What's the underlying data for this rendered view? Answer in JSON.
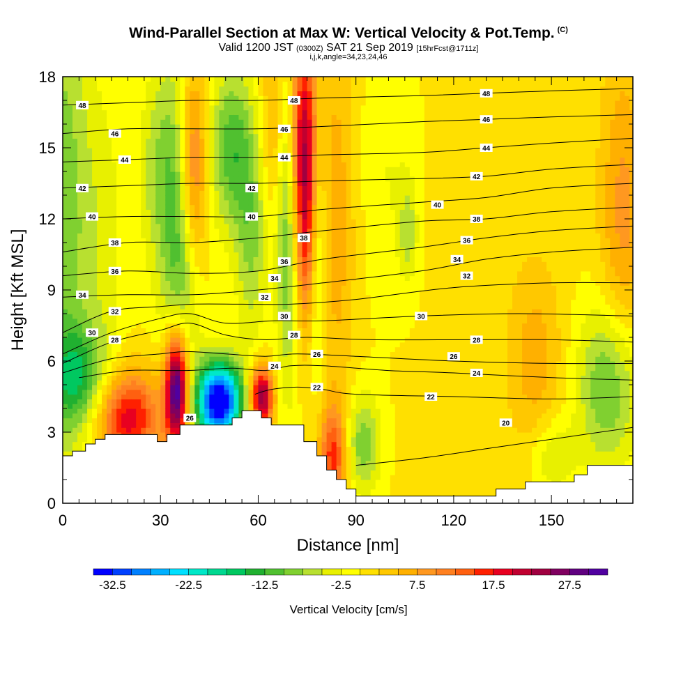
{
  "chart_data": {
    "type": "heatmap",
    "title": "Wind-Parallel Section at Max W: Vertical Velocity & Pot.Temp.",
    "title_mark": "(C)",
    "subtitle_main": "Valid 1200 JST",
    "subtitle_utc": "(0300Z)",
    "subtitle_date": "SAT 21 Sep 2019",
    "subtitle_fcst": "[15hrFcst@1711z]",
    "grid_info": "i,j,k,angle=34,23,24,46",
    "xlabel": "Distance [nm]",
    "ylabel": "Height [Kft MSL]",
    "xlim": [
      0,
      175
    ],
    "ylim": [
      0,
      18
    ],
    "x_ticks": [
      0,
      30,
      60,
      90,
      120,
      150
    ],
    "y_ticks": [
      0,
      3,
      6,
      9,
      12,
      15,
      18
    ],
    "colorbar": {
      "label": "Vertical Velocity [cm/s]",
      "min": -35,
      "max": 32.5,
      "step": 2.5,
      "tick_labels": [
        "-32.5",
        "-22.5",
        "-12.5",
        "-2.5",
        "7.5",
        "17.5",
        "27.5"
      ],
      "colors": [
        "#0000ff",
        "#0040ff",
        "#0080ff",
        "#00b0ff",
        "#00e0ff",
        "#00e8c8",
        "#00d890",
        "#00c860",
        "#20b030",
        "#50c030",
        "#80d030",
        "#b8e030",
        "#e8f000",
        "#ffff00",
        "#ffe000",
        "#ffc800",
        "#ffb000",
        "#ff9820",
        "#ff8020",
        "#ff6010",
        "#ff2000",
        "#e80020",
        "#c00030",
        "#a00040",
        "#800060",
        "#600080",
        "#5000a0"
      ]
    },
    "terrain_kft": [
      [
        0,
        2.0
      ],
      [
        3,
        2.0
      ],
      [
        3,
        2.2
      ],
      [
        7,
        2.2
      ],
      [
        7,
        2.5
      ],
      [
        10,
        2.5
      ],
      [
        10,
        2.7
      ],
      [
        13,
        2.7
      ],
      [
        13,
        2.9
      ],
      [
        29,
        2.9
      ],
      [
        29,
        2.6
      ],
      [
        32,
        2.6
      ],
      [
        32,
        2.9
      ],
      [
        36,
        2.9
      ],
      [
        36,
        3.3
      ],
      [
        52,
        3.3
      ],
      [
        52,
        3.6
      ],
      [
        55,
        3.6
      ],
      [
        55,
        3.9
      ],
      [
        61,
        3.9
      ],
      [
        61,
        3.6
      ],
      [
        64,
        3.6
      ],
      [
        64,
        3.3
      ],
      [
        74,
        3.3
      ],
      [
        74,
        2.6
      ],
      [
        78,
        2.6
      ],
      [
        78,
        2.0
      ],
      [
        81,
        2.0
      ],
      [
        81,
        1.4
      ],
      [
        84,
        1.4
      ],
      [
        84,
        1.0
      ],
      [
        87,
        1.0
      ],
      [
        87,
        0.6
      ],
      [
        90,
        0.6
      ],
      [
        90,
        0.3
      ],
      [
        133,
        0.3
      ],
      [
        133,
        0.6
      ],
      [
        142,
        0.6
      ],
      [
        142,
        0.9
      ],
      [
        157,
        0.9
      ],
      [
        157,
        1.2
      ],
      [
        161,
        1.2
      ],
      [
        161,
        1.6
      ],
      [
        175,
        1.6
      ]
    ],
    "theta_contours": [
      {
        "value": 20,
        "points": [
          [
            90,
            1.6
          ],
          [
            110,
            1.9
          ],
          [
            130,
            2.3
          ],
          [
            150,
            2.7
          ],
          [
            175,
            3.2
          ]
        ]
      },
      {
        "value": 22,
        "points": [
          [
            59,
            4.6
          ],
          [
            64,
            4.8
          ],
          [
            72,
            4.9
          ],
          [
            80,
            4.8
          ],
          [
            90,
            4.6
          ],
          [
            120,
            4.5
          ],
          [
            150,
            4.4
          ],
          [
            175,
            4.5
          ]
        ]
      },
      {
        "value": 24,
        "points": [
          [
            5,
            5.3
          ],
          [
            20,
            5.6
          ],
          [
            38,
            5.6
          ],
          [
            52,
            5.7
          ],
          [
            62,
            5.6
          ],
          [
            70,
            5.8
          ],
          [
            80,
            5.8
          ],
          [
            100,
            5.6
          ],
          [
            120,
            5.5
          ],
          [
            150,
            5.3
          ],
          [
            175,
            5.2
          ]
        ]
      },
      {
        "value": 26,
        "points": [
          [
            0,
            5.5
          ],
          [
            15,
            6.1
          ],
          [
            30,
            6.3
          ],
          [
            38,
            6.4
          ],
          [
            50,
            6.3
          ],
          [
            62,
            6.2
          ],
          [
            72,
            6.3
          ],
          [
            90,
            6.2
          ],
          [
            120,
            6.0
          ],
          [
            150,
            5.9
          ],
          [
            175,
            5.9
          ]
        ]
      },
      {
        "value": 28,
        "points": [
          [
            0,
            5.9
          ],
          [
            15,
            6.8
          ],
          [
            30,
            7.3
          ],
          [
            39,
            7.6
          ],
          [
            50,
            7.1
          ],
          [
            62,
            6.9
          ],
          [
            75,
            7.0
          ],
          [
            95,
            6.9
          ],
          [
            125,
            6.9
          ],
          [
            150,
            6.9
          ],
          [
            175,
            6.8
          ]
        ]
      },
      {
        "value": 30,
        "points": [
          [
            0,
            6.3
          ],
          [
            15,
            7.2
          ],
          [
            30,
            7.8
          ],
          [
            39,
            8.0
          ],
          [
            50,
            7.6
          ],
          [
            65,
            7.7
          ],
          [
            80,
            7.7
          ],
          [
            110,
            7.9
          ],
          [
            140,
            8.0
          ],
          [
            175,
            7.9
          ]
        ]
      },
      {
        "value": 32,
        "points": [
          [
            0,
            7.2
          ],
          [
            15,
            8.1
          ],
          [
            30,
            8.3
          ],
          [
            40,
            8.4
          ],
          [
            55,
            8.4
          ],
          [
            70,
            8.4
          ],
          [
            90,
            8.6
          ],
          [
            120,
            9.1
          ],
          [
            150,
            9.3
          ],
          [
            175,
            9.3
          ]
        ]
      },
      {
        "value": 34,
        "points": [
          [
            0,
            8.7
          ],
          [
            20,
            8.8
          ],
          [
            40,
            8.8
          ],
          [
            60,
            9.0
          ],
          [
            80,
            9.3
          ],
          [
            110,
            9.8
          ],
          [
            130,
            10.3
          ],
          [
            150,
            10.6
          ],
          [
            175,
            10.8
          ]
        ]
      },
      {
        "value": 36,
        "points": [
          [
            0,
            9.6
          ],
          [
            20,
            9.8
          ],
          [
            40,
            9.7
          ],
          [
            60,
            9.8
          ],
          [
            80,
            10.3
          ],
          [
            110,
            10.8
          ],
          [
            130,
            11.2
          ],
          [
            150,
            11.5
          ],
          [
            175,
            11.7
          ]
        ]
      },
      {
        "value": 38,
        "points": [
          [
            0,
            10.6
          ],
          [
            20,
            11.0
          ],
          [
            40,
            11.0
          ],
          [
            60,
            11.2
          ],
          [
            80,
            11.5
          ],
          [
            110,
            11.9
          ],
          [
            130,
            12.0
          ],
          [
            150,
            12.3
          ],
          [
            175,
            12.5
          ]
        ]
      },
      {
        "value": 40,
        "points": [
          [
            0,
            12.0
          ],
          [
            20,
            12.1
          ],
          [
            40,
            12.1
          ],
          [
            60,
            12.1
          ],
          [
            80,
            12.4
          ],
          [
            110,
            12.7
          ],
          [
            130,
            12.9
          ],
          [
            150,
            13.3
          ],
          [
            175,
            13.5
          ]
        ]
      },
      {
        "value": 42,
        "points": [
          [
            0,
            13.3
          ],
          [
            20,
            13.4
          ],
          [
            40,
            13.5
          ],
          [
            60,
            13.5
          ],
          [
            80,
            13.6
          ],
          [
            110,
            13.7
          ],
          [
            130,
            13.8
          ],
          [
            150,
            14.1
          ],
          [
            175,
            14.3
          ]
        ]
      },
      {
        "value": 44,
        "points": [
          [
            0,
            14.4
          ],
          [
            20,
            14.5
          ],
          [
            40,
            14.6
          ],
          [
            60,
            14.6
          ],
          [
            80,
            14.7
          ],
          [
            110,
            14.8
          ],
          [
            130,
            15.0
          ],
          [
            150,
            15.2
          ],
          [
            175,
            15.4
          ]
        ]
      },
      {
        "value": 46,
        "points": [
          [
            0,
            15.6
          ],
          [
            20,
            15.8
          ],
          [
            40,
            15.8
          ],
          [
            60,
            15.8
          ],
          [
            80,
            15.9
          ],
          [
            110,
            16.1
          ],
          [
            130,
            16.2
          ],
          [
            150,
            16.3
          ],
          [
            175,
            16.4
          ]
        ]
      },
      {
        "value": 48,
        "points": [
          [
            0,
            16.8
          ],
          [
            20,
            16.9
          ],
          [
            40,
            17.0
          ],
          [
            60,
            17.0
          ],
          [
            80,
            17.1
          ],
          [
            110,
            17.2
          ],
          [
            130,
            17.3
          ],
          [
            150,
            17.4
          ],
          [
            175,
            17.5
          ]
        ]
      }
    ],
    "contour_labels": [
      {
        "text": "48",
        "x": 6,
        "y": 16.8
      },
      {
        "text": "46",
        "x": 16,
        "y": 15.6
      },
      {
        "text": "44",
        "x": 19,
        "y": 14.5
      },
      {
        "text": "42",
        "x": 6,
        "y": 13.3
      },
      {
        "text": "40",
        "x": 9,
        "y": 12.1
      },
      {
        "text": "38",
        "x": 16,
        "y": 11.0
      },
      {
        "text": "36",
        "x": 16,
        "y": 9.8
      },
      {
        "text": "34",
        "x": 6,
        "y": 8.8
      },
      {
        "text": "32",
        "x": 16,
        "y": 8.1
      },
      {
        "text": "30",
        "x": 9,
        "y": 7.2
      },
      {
        "text": "28",
        "x": 16,
        "y": 6.9
      },
      {
        "text": "48",
        "x": 71,
        "y": 17.0
      },
      {
        "text": "46",
        "x": 68,
        "y": 15.8
      },
      {
        "text": "44",
        "x": 68,
        "y": 14.6
      },
      {
        "text": "42",
        "x": 58,
        "y": 13.3
      },
      {
        "text": "40",
        "x": 58,
        "y": 12.1
      },
      {
        "text": "38",
        "x": 74,
        "y": 11.2
      },
      {
        "text": "36",
        "x": 68,
        "y": 10.2
      },
      {
        "text": "34",
        "x": 65,
        "y": 9.5
      },
      {
        "text": "32",
        "x": 62,
        "y": 8.7
      },
      {
        "text": "30",
        "x": 68,
        "y": 7.9
      },
      {
        "text": "28",
        "x": 71,
        "y": 7.1
      },
      {
        "text": "26",
        "x": 78,
        "y": 6.3
      },
      {
        "text": "24",
        "x": 65,
        "y": 5.8
      },
      {
        "text": "22",
        "x": 78,
        "y": 4.9
      },
      {
        "text": "26",
        "x": 39,
        "y": 3.6
      },
      {
        "text": "48",
        "x": 130,
        "y": 17.3
      },
      {
        "text": "46",
        "x": 130,
        "y": 16.2
      },
      {
        "text": "44",
        "x": 130,
        "y": 15.0
      },
      {
        "text": "42",
        "x": 127,
        "y": 13.8
      },
      {
        "text": "40",
        "x": 115,
        "y": 12.6
      },
      {
        "text": "38",
        "x": 127,
        "y": 12.0
      },
      {
        "text": "36",
        "x": 124,
        "y": 11.1
      },
      {
        "text": "34",
        "x": 121,
        "y": 10.3
      },
      {
        "text": "32",
        "x": 124,
        "y": 9.6
      },
      {
        "text": "30",
        "x": 110,
        "y": 7.9
      },
      {
        "text": "28",
        "x": 127,
        "y": 6.9
      },
      {
        "text": "26",
        "x": 120,
        "y": 6.2
      },
      {
        "text": "24",
        "x": 127,
        "y": 5.5
      },
      {
        "text": "22",
        "x": 113,
        "y": 4.5
      },
      {
        "text": "20",
        "x": 136,
        "y": 3.4
      }
    ],
    "w_features": [
      {
        "x": 0,
        "y": 12,
        "sx": 6,
        "sy": 8,
        "v": -10
      },
      {
        "x": 5,
        "y": 5.3,
        "sx": 6,
        "sy": 1.5,
        "v": -12
      },
      {
        "x": 13,
        "y": 11,
        "sx": 5,
        "sy": 5,
        "v": -4
      },
      {
        "x": 20,
        "y": 3.6,
        "sx": 7,
        "sy": 1.4,
        "v": 19
      },
      {
        "x": 27,
        "y": 14,
        "sx": 3,
        "sy": 3,
        "v": -4
      },
      {
        "x": 33,
        "y": 14,
        "sx": 4,
        "sy": 4,
        "v": -8
      },
      {
        "x": 35,
        "y": 4.8,
        "sx": 2.5,
        "sy": 1.7,
        "v": 34
      },
      {
        "x": 37,
        "y": 10,
        "sx": 4,
        "sy": 4,
        "v": -9
      },
      {
        "x": 40,
        "y": 14,
        "sx": 3,
        "sy": 3,
        "v": 14
      },
      {
        "x": 48,
        "y": 4.3,
        "sx": 5,
        "sy": 1.2,
        "v": -38
      },
      {
        "x": 52,
        "y": 15,
        "sx": 5,
        "sy": 2.5,
        "v": -12
      },
      {
        "x": 58,
        "y": 11,
        "sx": 3.5,
        "sy": 3,
        "v": -8
      },
      {
        "x": 61,
        "y": 4.5,
        "sx": 2.5,
        "sy": 0.9,
        "v": 26
      },
      {
        "x": 65,
        "y": 16,
        "sx": 3,
        "sy": 3,
        "v": 6
      },
      {
        "x": 69,
        "y": 12,
        "sx": 2.5,
        "sy": 5,
        "v": -12
      },
      {
        "x": 74,
        "y": 15.5,
        "sx": 3,
        "sy": 3.5,
        "v": 20
      },
      {
        "x": 75,
        "y": 11,
        "sx": 2.5,
        "sy": 3,
        "v": 11
      },
      {
        "x": 78,
        "y": 11,
        "sx": 2,
        "sy": 4,
        "v": -10
      },
      {
        "x": 83,
        "y": 2,
        "sx": 3,
        "sy": 1.5,
        "v": 15
      },
      {
        "x": 84,
        "y": 12,
        "sx": 4,
        "sy": 6,
        "v": 6
      },
      {
        "x": 92,
        "y": 2.5,
        "sx": 4,
        "sy": 1.5,
        "v": -10
      },
      {
        "x": 100,
        "y": 14,
        "sx": 6,
        "sy": 4,
        "v": -3
      },
      {
        "x": 106,
        "y": 11.5,
        "sx": 2,
        "sy": 1.5,
        "v": -6
      },
      {
        "x": 145,
        "y": 6,
        "sx": 6,
        "sy": 3,
        "v": 6
      },
      {
        "x": 150,
        "y": 2,
        "sx": 5,
        "sy": 1.2,
        "v": -6
      },
      {
        "x": 168,
        "y": 5,
        "sx": 7,
        "sy": 2.5,
        "v": -12
      },
      {
        "x": 172,
        "y": 12,
        "sx": 5,
        "sy": 5,
        "v": 8
      }
    ]
  }
}
